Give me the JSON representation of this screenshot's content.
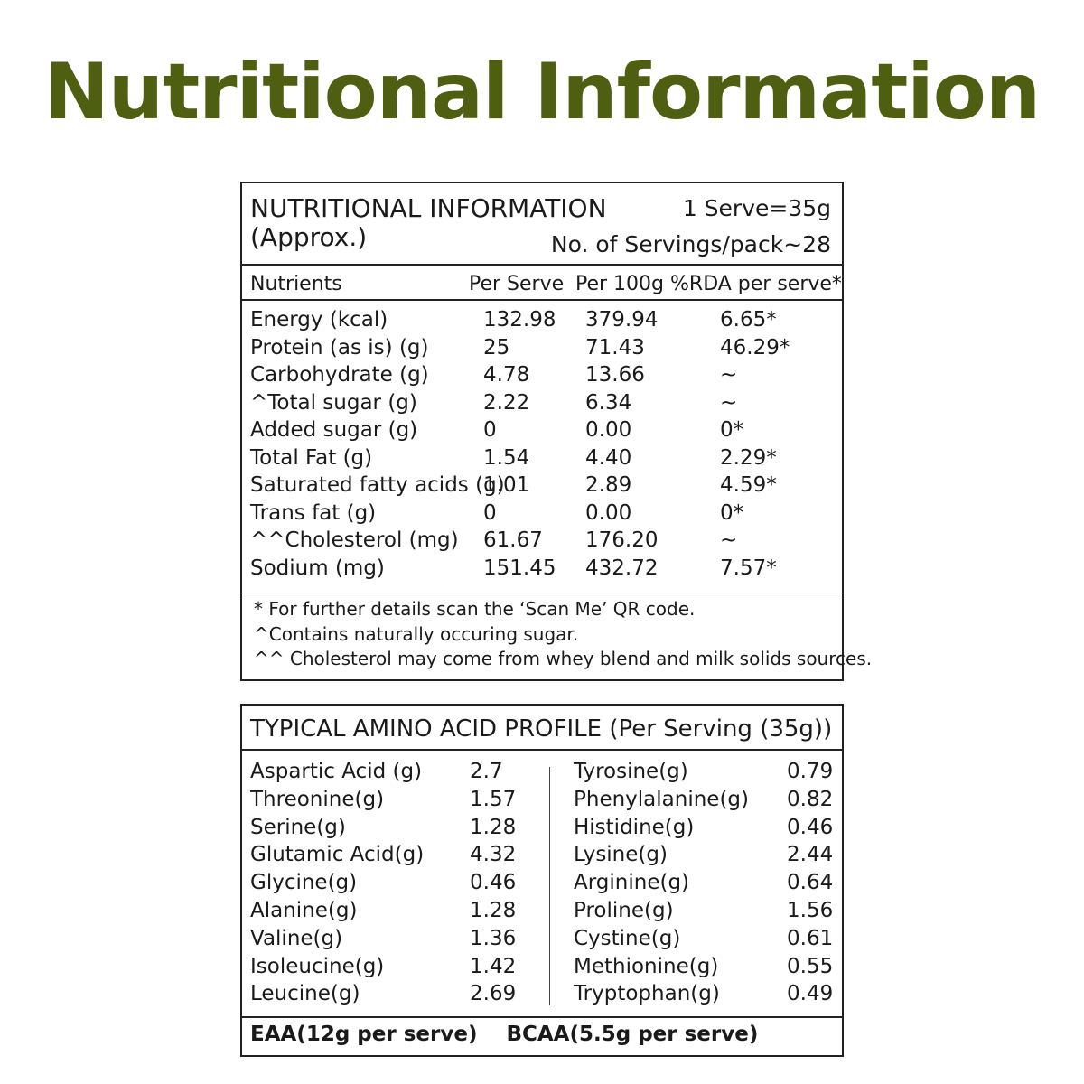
{
  "title": "Nutritional Information",
  "nutrition": {
    "heading": "NUTRITIONAL INFORMATION",
    "subheading": "(Approx.)",
    "serve_size": "1 Serve=35g",
    "servings_per_pack": "No. of Servings/pack~28",
    "columns": [
      "Nutrients",
      "Per Serve",
      "Per 100g",
      "%RDA per serve*"
    ],
    "rows": [
      {
        "name": "Energy (kcal)",
        "per_serve": "132.98",
        "per_100g": "379.94",
        "rda": "6.65*"
      },
      {
        "name": "Protein (as is) (g)",
        "per_serve": "25",
        "per_100g": "71.43",
        "rda": "46.29*"
      },
      {
        "name": "Carbohydrate (g)",
        "per_serve": "4.78",
        "per_100g": "13.66",
        "rda": "~"
      },
      {
        "name": "^Total sugar (g)",
        "per_serve": "2.22",
        "per_100g": "6.34",
        "rda": "~"
      },
      {
        "name": "Added sugar (g)",
        "per_serve": "0",
        "per_100g": "0.00",
        "rda": "0*"
      },
      {
        "name": "Total Fat (g)",
        "per_serve": "1.54",
        "per_100g": "4.40",
        "rda": "2.29*"
      },
      {
        "name": "Saturated fatty acids (g)",
        "per_serve": "1.01",
        "per_100g": "2.89",
        "rda": "4.59*"
      },
      {
        "name": "Trans fat (g)",
        "per_serve": "0",
        "per_100g": "0.00",
        "rda": "0*"
      },
      {
        "name": "^^Cholesterol (mg)",
        "per_serve": "61.67",
        "per_100g": "176.20",
        "rda": "~"
      },
      {
        "name": "Sodium (mg)",
        "per_serve": "151.45",
        "per_100g": "432.72",
        "rda": "7.57*"
      }
    ],
    "footnotes": [
      "* For further details scan the ‘Scan Me’ QR code.",
      "^Contains naturally occuring sugar.",
      "^^ Cholesterol may come from whey blend and milk solids sources."
    ]
  },
  "amino": {
    "heading": "TYPICAL AMINO ACID PROFILE  (Per Serving (35g))",
    "left": [
      {
        "name": "Aspartic Acid (g)",
        "value": "2.7"
      },
      {
        "name": "Threonine(g)",
        "value": "1.57"
      },
      {
        "name": "Serine(g)",
        "value": "1.28"
      },
      {
        "name": "Glutamic Acid(g)",
        "value": "4.32"
      },
      {
        "name": "Glycine(g)",
        "value": "0.46"
      },
      {
        "name": "Alanine(g)",
        "value": "1.28"
      },
      {
        "name": "Valine(g)",
        "value": "1.36"
      },
      {
        "name": "Isoleucine(g)",
        "value": "1.42"
      },
      {
        "name": "Leucine(g)",
        "value": "2.69"
      }
    ],
    "right": [
      {
        "name": "Tyrosine(g)",
        "value": "0.79"
      },
      {
        "name": "Phenylalanine(g)",
        "value": "0.82"
      },
      {
        "name": "Histidine(g)",
        "value": "0.46"
      },
      {
        "name": "Lysine(g)",
        "value": "2.44"
      },
      {
        "name": "Arginine(g)",
        "value": "0.64"
      },
      {
        "name": "Proline(g)",
        "value": "1.56"
      },
      {
        "name": "Cystine(g)",
        "value": "0.61"
      },
      {
        "name": "Methionine(g)",
        "value": "0.55"
      },
      {
        "name": "Tryptophan(g)",
        "value": "0.49"
      }
    ],
    "eaa": "EAA(12g per serve)",
    "bcaa": "BCAA(5.5g per serve)"
  },
  "colors": {
    "title_green": "#4f5f11",
    "border": "#222222"
  }
}
